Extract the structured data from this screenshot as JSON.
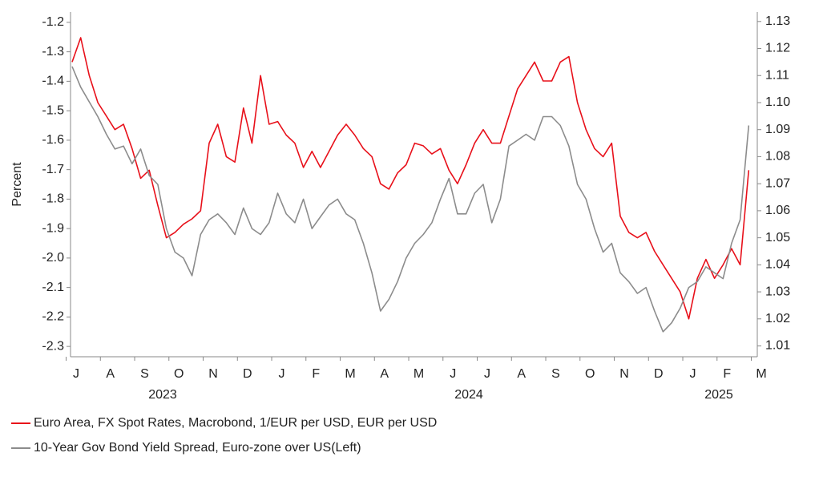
{
  "chart_data": {
    "type": "line",
    "ylabel": "Percent",
    "categories": [
      "J",
      null,
      null,
      null,
      "A",
      null,
      null,
      null,
      "S",
      null,
      null,
      null,
      "O",
      null,
      null,
      null,
      "N",
      null,
      null,
      null,
      "D",
      null,
      null,
      null,
      "J",
      null,
      null,
      null,
      "F",
      null,
      null,
      null,
      "M",
      null,
      null,
      null,
      "A",
      null,
      null,
      null,
      "M",
      null,
      null,
      null,
      "J",
      null,
      null,
      null,
      "J",
      null,
      null,
      null,
      "A",
      null,
      null,
      null,
      "S",
      null,
      null,
      null,
      "O",
      null,
      null,
      null,
      "N",
      null,
      null,
      null,
      "D",
      null,
      null,
      null,
      "J",
      null,
      null,
      null,
      "F",
      null,
      null,
      null,
      "M"
    ],
    "x_group_labels": [
      "2023",
      "2024",
      "2025"
    ],
    "series": [
      {
        "name": "Euro Area, FX Spot Rates, Macrobond, 1/EUR per USD, EUR per USD",
        "color": "#e8101a",
        "axis": "y2",
        "values": [
          1.115,
          1.124,
          1.11,
          1.1,
          1.095,
          1.09,
          1.092,
          1.083,
          1.072,
          1.075,
          1.062,
          1.05,
          1.052,
          1.055,
          1.057,
          1.06,
          1.085,
          1.092,
          1.08,
          1.078,
          1.098,
          1.085,
          1.11,
          1.092,
          1.093,
          1.088,
          1.085,
          1.076,
          1.082,
          1.076,
          1.082,
          1.088,
          1.092,
          1.088,
          1.083,
          1.08,
          1.07,
          1.068,
          1.074,
          1.077,
          1.085,
          1.084,
          1.081,
          1.083,
          1.075,
          1.07,
          1.077,
          1.085,
          1.09,
          1.085,
          1.085,
          1.095,
          1.105,
          1.11,
          1.115,
          1.108,
          1.108,
          1.115,
          1.117,
          1.1,
          1.09,
          1.083,
          1.08,
          1.085,
          1.058,
          1.052,
          1.05,
          1.052,
          1.045,
          1.04,
          1.035,
          1.03,
          1.02,
          1.035,
          1.042,
          1.035,
          1.04,
          1.046,
          1.04,
          1.075,
          null
        ]
      },
      {
        "name": "10-Year Gov Bond Yield Spread, Euro-zone over US(Left)",
        "color": "#8c8c8c",
        "values": [
          -1.35,
          -1.42,
          -1.47,
          -1.52,
          -1.58,
          -1.63,
          -1.62,
          -1.68,
          -1.63,
          -1.72,
          -1.75,
          -1.9,
          -1.98,
          -2.0,
          -2.06,
          -1.92,
          -1.87,
          -1.85,
          -1.88,
          -1.92,
          -1.83,
          -1.9,
          -1.92,
          -1.88,
          -1.78,
          -1.85,
          -1.88,
          -1.8,
          -1.9,
          -1.86,
          -1.82,
          -1.8,
          -1.85,
          -1.87,
          -1.95,
          -2.05,
          -2.18,
          -2.14,
          -2.08,
          -2.0,
          -1.95,
          -1.92,
          -1.88,
          -1.8,
          -1.73,
          -1.85,
          -1.85,
          -1.78,
          -1.75,
          -1.88,
          -1.8,
          -1.62,
          -1.6,
          -1.58,
          -1.6,
          -1.52,
          -1.52,
          -1.55,
          -1.62,
          -1.75,
          -1.8,
          -1.9,
          -1.98,
          -1.95,
          -2.05,
          -2.08,
          -2.12,
          -2.1,
          -2.18,
          -2.25,
          -2.22,
          -2.17,
          -2.1,
          -2.08,
          -2.03,
          -2.05,
          -2.07,
          -1.95,
          -1.87,
          -1.55,
          null
        ]
      }
    ],
    "ylim": [
      -2.335,
      -1.165
    ],
    "yticks": [
      -1.2,
      -1.3,
      -1.4,
      -1.5,
      -1.6,
      -1.7,
      -1.8,
      -1.9,
      {
        "value": -2,
        "label": "-2.0"
      },
      -2.1,
      -2.2,
      -2.3
    ],
    "y2lim": [
      1.006,
      1.1335
    ],
    "y2ticks": [
      1.01,
      1.02,
      1.03,
      1.04,
      1.05,
      1.06,
      1.07,
      1.08,
      1.09,
      {
        "value": 1.1,
        "label": "1.10"
      },
      1.11,
      1.12,
      1.13
    ],
    "grid": false,
    "legend": "bottom"
  }
}
